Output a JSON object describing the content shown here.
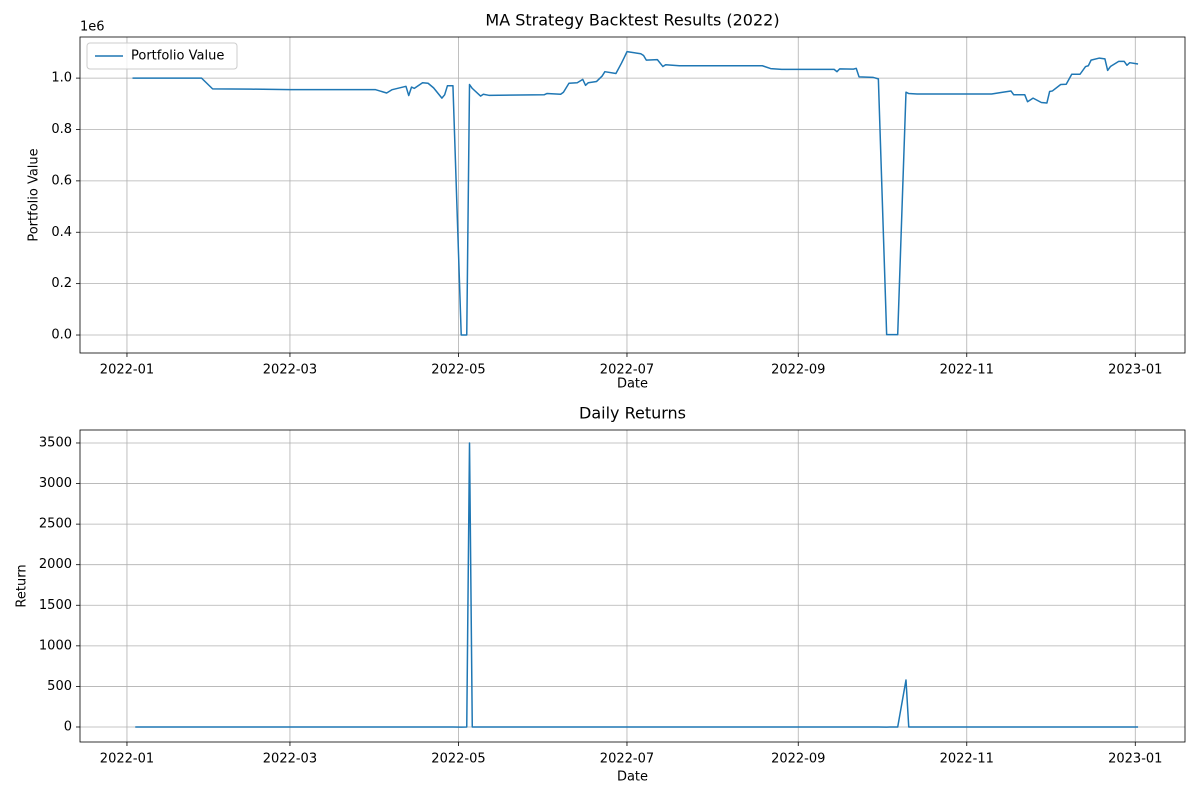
{
  "chart_data": [
    {
      "type": "line",
      "title": "MA Strategy Backtest Results (2022)",
      "x_label": "Date",
      "y_label": "Portfolio Value",
      "y_offset_label": "1e6",
      "x": [
        "2022-01-03",
        "2022-01-28",
        "2022-02-01",
        "2022-02-15",
        "2022-03-01",
        "2022-04-01",
        "2022-04-05",
        "2022-04-07",
        "2022-04-12",
        "2022-04-13",
        "2022-04-14",
        "2022-04-15",
        "2022-04-18",
        "2022-04-20",
        "2022-04-22",
        "2022-04-25",
        "2022-04-26",
        "2022-04-27",
        "2022-04-29",
        "2022-05-02",
        "2022-05-04",
        "2022-05-05",
        "2022-05-06",
        "2022-05-09",
        "2022-05-10",
        "2022-05-12",
        "2022-06-01",
        "2022-06-02",
        "2022-06-07",
        "2022-06-08",
        "2022-06-10",
        "2022-06-13",
        "2022-06-15",
        "2022-06-16",
        "2022-06-17",
        "2022-06-20",
        "2022-06-22",
        "2022-06-23",
        "2022-06-27",
        "2022-06-29",
        "2022-06-30",
        "2022-07-01",
        "2022-07-06",
        "2022-07-07",
        "2022-07-08",
        "2022-07-12",
        "2022-07-14",
        "2022-07-15",
        "2022-07-20",
        "2022-08-19",
        "2022-08-22",
        "2022-08-26",
        "2022-09-14",
        "2022-09-15",
        "2022-09-16",
        "2022-09-21",
        "2022-09-22",
        "2022-09-23",
        "2022-09-28",
        "2022-09-30",
        "2022-10-03",
        "2022-10-07",
        "2022-10-10",
        "2022-10-11",
        "2022-10-14",
        "2022-11-10",
        "2022-11-14",
        "2022-11-17",
        "2022-11-18",
        "2022-11-22",
        "2022-11-23",
        "2022-11-25",
        "2022-11-28",
        "2022-11-30",
        "2022-12-01",
        "2022-12-02",
        "2022-12-05",
        "2022-12-07",
        "2022-12-09",
        "2022-12-12",
        "2022-12-14",
        "2022-12-15",
        "2022-12-16",
        "2022-12-19",
        "2022-12-21",
        "2022-12-22",
        "2022-12-23",
        "2022-12-26",
        "2022-12-28",
        "2022-12-29",
        "2022-12-30",
        "2023-01-02"
      ],
      "series": [
        {
          "name": "Portfolio Value",
          "color": "#1f77b4",
          "values": [
            1000000,
            1000000,
            958000,
            957000,
            955000,
            955000,
            942000,
            955000,
            968000,
            932000,
            965000,
            960000,
            982000,
            980000,
            962000,
            922000,
            935000,
            970000,
            970000,
            278,
            278,
            975000,
            960000,
            930000,
            937000,
            933000,
            935000,
            940000,
            937000,
            945000,
            980000,
            982000,
            995000,
            972000,
            982000,
            987000,
            1008000,
            1025000,
            1018000,
            1058000,
            1080000,
            1103000,
            1095000,
            1088000,
            1070000,
            1072000,
            1045000,
            1052000,
            1048000,
            1048000,
            1037000,
            1034000,
            1034000,
            1025000,
            1036000,
            1035000,
            1038000,
            1005000,
            1003000,
            997000,
            1630,
            1630,
            945000,
            940000,
            938000,
            938000,
            945000,
            950000,
            935000,
            935000,
            908000,
            922000,
            905000,
            903000,
            948000,
            950000,
            975000,
            976000,
            1015000,
            1015000,
            1045000,
            1048000,
            1070000,
            1078000,
            1075000,
            1030000,
            1045000,
            1065000,
            1065000,
            1050000,
            1060000,
            1055000
          ]
        }
      ],
      "xlim": [
        "2021-12-15",
        "2023-01-19"
      ],
      "xticks": [
        {
          "value": "2022-01-01",
          "label": "2022-01"
        },
        {
          "value": "2022-03-01",
          "label": "2022-03"
        },
        {
          "value": "2022-05-01",
          "label": "2022-05"
        },
        {
          "value": "2022-07-01",
          "label": "2022-07"
        },
        {
          "value": "2022-09-01",
          "label": "2022-09"
        },
        {
          "value": "2022-11-01",
          "label": "2022-11"
        },
        {
          "value": "2023-01-01",
          "label": "2023-01"
        }
      ],
      "ylim": [
        -70000,
        1160000
      ],
      "yticks": [
        {
          "value": 0,
          "label": "0.0"
        },
        {
          "value": 200000,
          "label": "0.2"
        },
        {
          "value": 400000,
          "label": "0.4"
        },
        {
          "value": 600000,
          "label": "0.6"
        },
        {
          "value": 800000,
          "label": "0.8"
        },
        {
          "value": 1000000,
          "label": "1.0"
        }
      ],
      "grid": true,
      "legend": "upper left"
    },
    {
      "type": "line",
      "title": "Daily Returns",
      "x_label": "Date",
      "y_label": "Return",
      "x": [
        "2022-01-04",
        "2022-04-29",
        "2022-05-02",
        "2022-05-04",
        "2022-05-05",
        "2022-05-06",
        "2022-09-30",
        "2022-10-03",
        "2022-10-07",
        "2022-10-10",
        "2022-10-11",
        "2023-01-02"
      ],
      "series": [
        {
          "name": "Return",
          "color": "#1f77b4",
          "values": [
            0,
            0,
            -1,
            0,
            3500,
            0,
            0,
            -1,
            0,
            579,
            0,
            0
          ]
        }
      ],
      "xlim": [
        "2021-12-15",
        "2023-01-19"
      ],
      "xticks": [
        {
          "value": "2022-01-01",
          "label": "2022-01"
        },
        {
          "value": "2022-03-01",
          "label": "2022-03"
        },
        {
          "value": "2022-05-01",
          "label": "2022-05"
        },
        {
          "value": "2022-07-01",
          "label": "2022-07"
        },
        {
          "value": "2022-09-01",
          "label": "2022-09"
        },
        {
          "value": "2022-11-01",
          "label": "2022-11"
        },
        {
          "value": "2023-01-01",
          "label": "2023-01"
        }
      ],
      "ylim": [
        -185,
        3660
      ],
      "yticks": [
        0,
        500,
        1000,
        1500,
        2000,
        2500,
        3000,
        3500
      ],
      "grid": true
    }
  ]
}
